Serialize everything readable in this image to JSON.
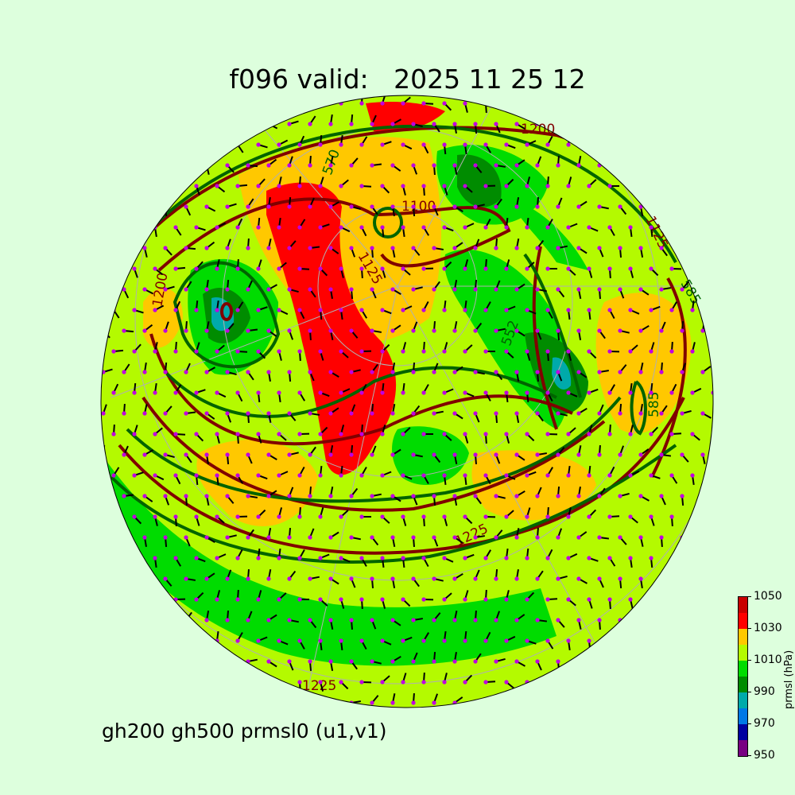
{
  "title": "f096 valid:   2025 11 25 12",
  "subtitle": "gh200 gh500 prmsl0 (u1,v1)",
  "colorbar": {
    "label": "prmsl (hPa)",
    "ticks": [
      "950",
      "970",
      "990",
      "1010",
      "1030",
      "1050"
    ],
    "bins": [
      950,
      960,
      970,
      980,
      990,
      1000,
      1010,
      1020,
      1030,
      1040,
      1050
    ],
    "colors": [
      "#780082",
      "#0000a0",
      "#0078e6",
      "#00aaaa",
      "#008c00",
      "#00dc00",
      "#b4fa00",
      "#ffc800",
      "#ff0000",
      "#c80000"
    ]
  },
  "contour_colors": {
    "gh200": "#800000",
    "gh500": "#006400",
    "wind_dots": "#c000e0"
  },
  "contour_labels": {
    "a": "1200",
    "b": "1100",
    "c": "1125",
    "d": "1200",
    "e": "1225",
    "f": "1225",
    "g": "585",
    "h": "585",
    "i": "552",
    "j": "570",
    "k": "1125"
  }
}
